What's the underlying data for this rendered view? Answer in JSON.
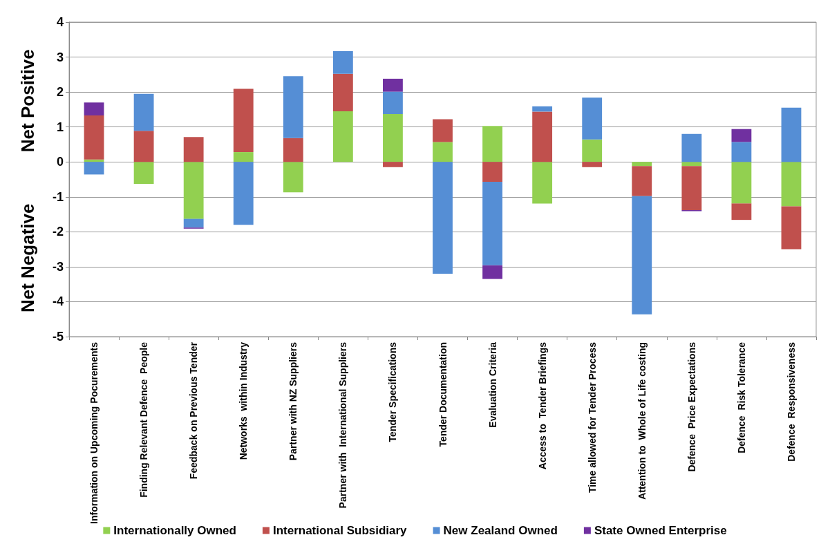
{
  "chart_data": {
    "type": "bar",
    "stacked": true,
    "categories": [
      "Information on Upcoming Pocurements",
      "Finding Relevant Defence  People",
      "Feedback on Previous Tender",
      "Networks  within Industry",
      "Partner with NZ Suppliers",
      "Partner with  International Suppliers",
      "Tender Specifications",
      "Tender Documentation",
      "Evaluation Criteria",
      "Access to  Tender Briefings",
      "Time allowed for Tender Process",
      "Attention to  Whole of Life costing",
      "Defence  Price Expectations",
      "Defence  Risk Tolerance",
      "Defence  Responsiveness"
    ],
    "series": [
      {
        "name": "Internationally Owned",
        "color": "#92d050",
        "values": [
          0.07,
          -0.63,
          -1.63,
          0.28,
          -0.87,
          1.45,
          1.37,
          0.57,
          1.03,
          -1.19,
          0.64,
          -0.12,
          -0.12,
          -1.19,
          -1.27
        ]
      },
      {
        "name": "International Subsidiary",
        "color": "#c0504d",
        "values": [
          1.26,
          0.89,
          0.71,
          1.81,
          0.68,
          1.07,
          -0.15,
          0.65,
          -0.57,
          1.44,
          -0.15,
          -0.86,
          -1.26,
          -0.47,
          -1.23
        ]
      },
      {
        "name": "New Zealand Owned",
        "color": "#558ed5",
        "values": [
          -0.36,
          1.06,
          -0.25,
          -1.8,
          1.77,
          0.65,
          0.64,
          -3.2,
          -2.39,
          0.15,
          1.2,
          -3.38,
          0.8,
          0.57,
          1.55
        ]
      },
      {
        "name": "State Owned Enterprise",
        "color": "#7030a0",
        "values": [
          0.37,
          null,
          -0.03,
          null,
          null,
          null,
          0.37,
          null,
          -0.39,
          null,
          null,
          null,
          -0.03,
          0.37,
          null
        ]
      }
    ],
    "annotations": [
      "Net Positive",
      "Net Negative"
    ],
    "ylim": [
      -5,
      4
    ],
    "yticks": [
      -5,
      -4,
      -3,
      -2,
      -1,
      0,
      1,
      2,
      3,
      4
    ],
    "grid": "y",
    "legend": "bottom"
  }
}
